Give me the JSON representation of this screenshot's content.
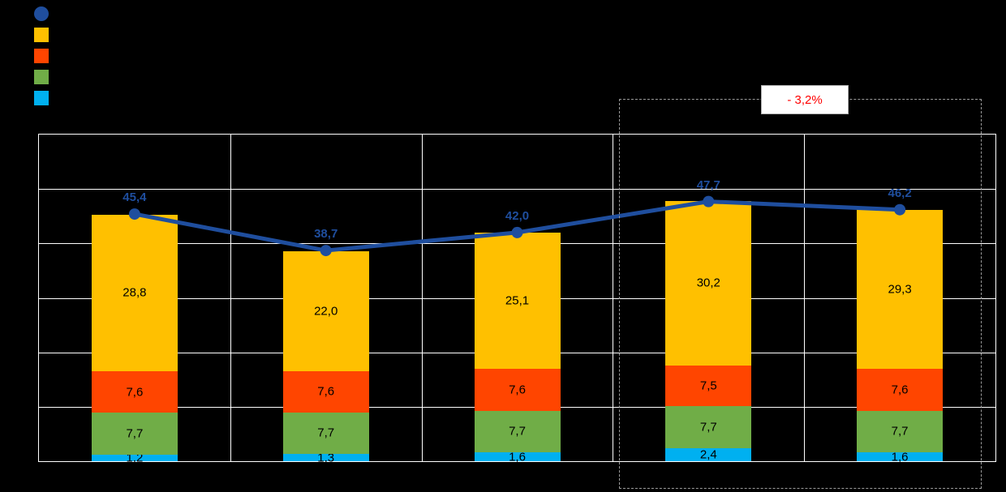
{
  "colors": {
    "background": "#000000",
    "grid": "#FFFFFF",
    "annotation_text": "#FF0000",
    "annotation_box_bg": "#FFFFFF"
  },
  "legend": {
    "items": [
      {
        "name": "line-series-swatch",
        "shape": "circle",
        "color": "#1F4E9E"
      },
      {
        "name": "orange-series-swatch",
        "shape": "square",
        "color": "#FFC000"
      },
      {
        "name": "red-series-swatch",
        "shape": "square",
        "color": "#FF4500"
      },
      {
        "name": "green-series-swatch",
        "shape": "square",
        "color": "#70AD47"
      },
      {
        "name": "cyan-series-swatch",
        "shape": "square",
        "color": "#00B0F0"
      }
    ]
  },
  "annotation": {
    "delta_label": "- 3,2%",
    "color": "#FF0000"
  },
  "chart_data": {
    "type": "bar",
    "subtype": "stacked-bars-with-line-overlay",
    "title": "",
    "xlabel": "",
    "ylabel": "",
    "categories": [
      "",
      "",
      "",
      "",
      ""
    ],
    "ylim": [
      0,
      60
    ],
    "y_gridline_step": 10,
    "grid": true,
    "legend_position": "top-left",
    "series": [
      {
        "name": "segment-cyan",
        "color": "#00B0F0",
        "values": [
          1.2,
          1.3,
          1.6,
          2.4,
          1.6
        ],
        "labels": [
          "1,2",
          "1,3",
          "1,6",
          "2,4",
          "1,6"
        ]
      },
      {
        "name": "segment-green",
        "color": "#70AD47",
        "values": [
          7.7,
          7.7,
          7.7,
          7.7,
          7.7
        ],
        "labels": [
          "7,7",
          "7,7",
          "7,7",
          "7,7",
          "7,7"
        ]
      },
      {
        "name": "segment-red",
        "color": "#FF4500",
        "values": [
          7.6,
          7.6,
          7.6,
          7.5,
          7.6
        ],
        "labels": [
          "7,6",
          "7,6",
          "7,6",
          "7,5",
          "7,6"
        ]
      },
      {
        "name": "segment-orange",
        "color": "#FFC000",
        "values": [
          28.8,
          22.0,
          25.1,
          30.2,
          29.3
        ],
        "labels": [
          "28,8",
          "22,0",
          "25,1",
          "30,2",
          "29,3"
        ]
      }
    ],
    "line": {
      "name": "total-line",
      "color": "#1F4E9E",
      "values": [
        45.4,
        38.7,
        42.0,
        47.7,
        46.2
      ],
      "labels": [
        "45,4",
        "38,7",
        "42,0",
        "47,7",
        "46,2"
      ]
    },
    "highlight": {
      "categories_covered": [
        4,
        5
      ],
      "annotation": "- 3,2%"
    }
  }
}
